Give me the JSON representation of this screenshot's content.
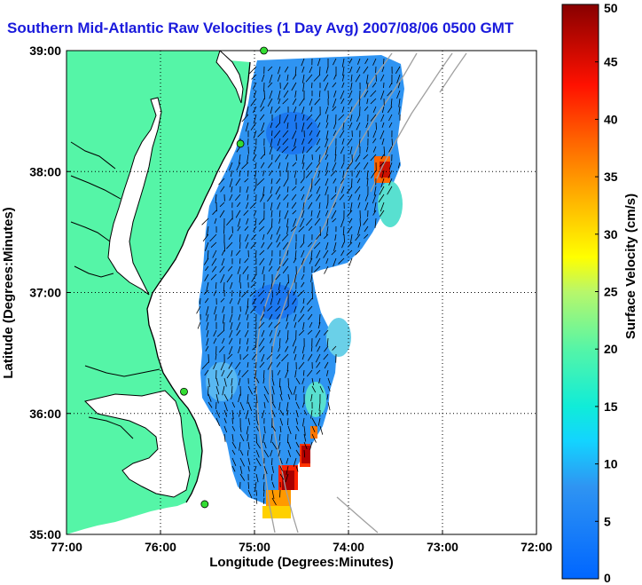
{
  "title": "Southern Mid-Atlantic Raw Velocities (1 Day Avg) 2007/08/06 0500 GMT",
  "colors": {
    "land": "#55f5a7",
    "ocean": "#ffffff",
    "coast": "#000000",
    "bathymetry": "#a0a0a0",
    "sites": "#33dd33",
    "title": "#1a1adc"
  },
  "chart_data": {
    "type": "heatmap",
    "xlabel": "Longitude (Degrees:Minutes)",
    "ylabel": "Latitude (Degrees:Minutes)",
    "xlim": [
      -77,
      -72
    ],
    "ylim": [
      35,
      39
    ],
    "x_ticks": [
      {
        "value": -77,
        "label": "77:00"
      },
      {
        "value": -76,
        "label": "76:00"
      },
      {
        "value": -75,
        "label": "75:00"
      },
      {
        "value": -74,
        "label": "74:00"
      },
      {
        "value": -73,
        "label": "73:00"
      },
      {
        "value": -72,
        "label": "72:00"
      }
    ],
    "y_ticks": [
      {
        "value": 35,
        "label": "35:00"
      },
      {
        "value": 36,
        "label": "36:00"
      },
      {
        "value": 37,
        "label": "37:00"
      },
      {
        "value": 38,
        "label": "38:00"
      },
      {
        "value": 39,
        "label": "39:00"
      }
    ],
    "grid": true,
    "colorbar": {
      "label": "Surface Velocity (cm/s)",
      "range": [
        0,
        50
      ],
      "ticks": [
        0,
        5,
        10,
        15,
        20,
        25,
        30,
        35,
        40,
        45,
        50
      ]
    },
    "radar_sites": [
      {
        "lon": -74.9,
        "lat": 39.0
      },
      {
        "lon": -75.15,
        "lat": 38.23
      },
      {
        "lon": -75.75,
        "lat": 36.18
      },
      {
        "lon": -75.53,
        "lat": 35.25
      }
    ]
  }
}
